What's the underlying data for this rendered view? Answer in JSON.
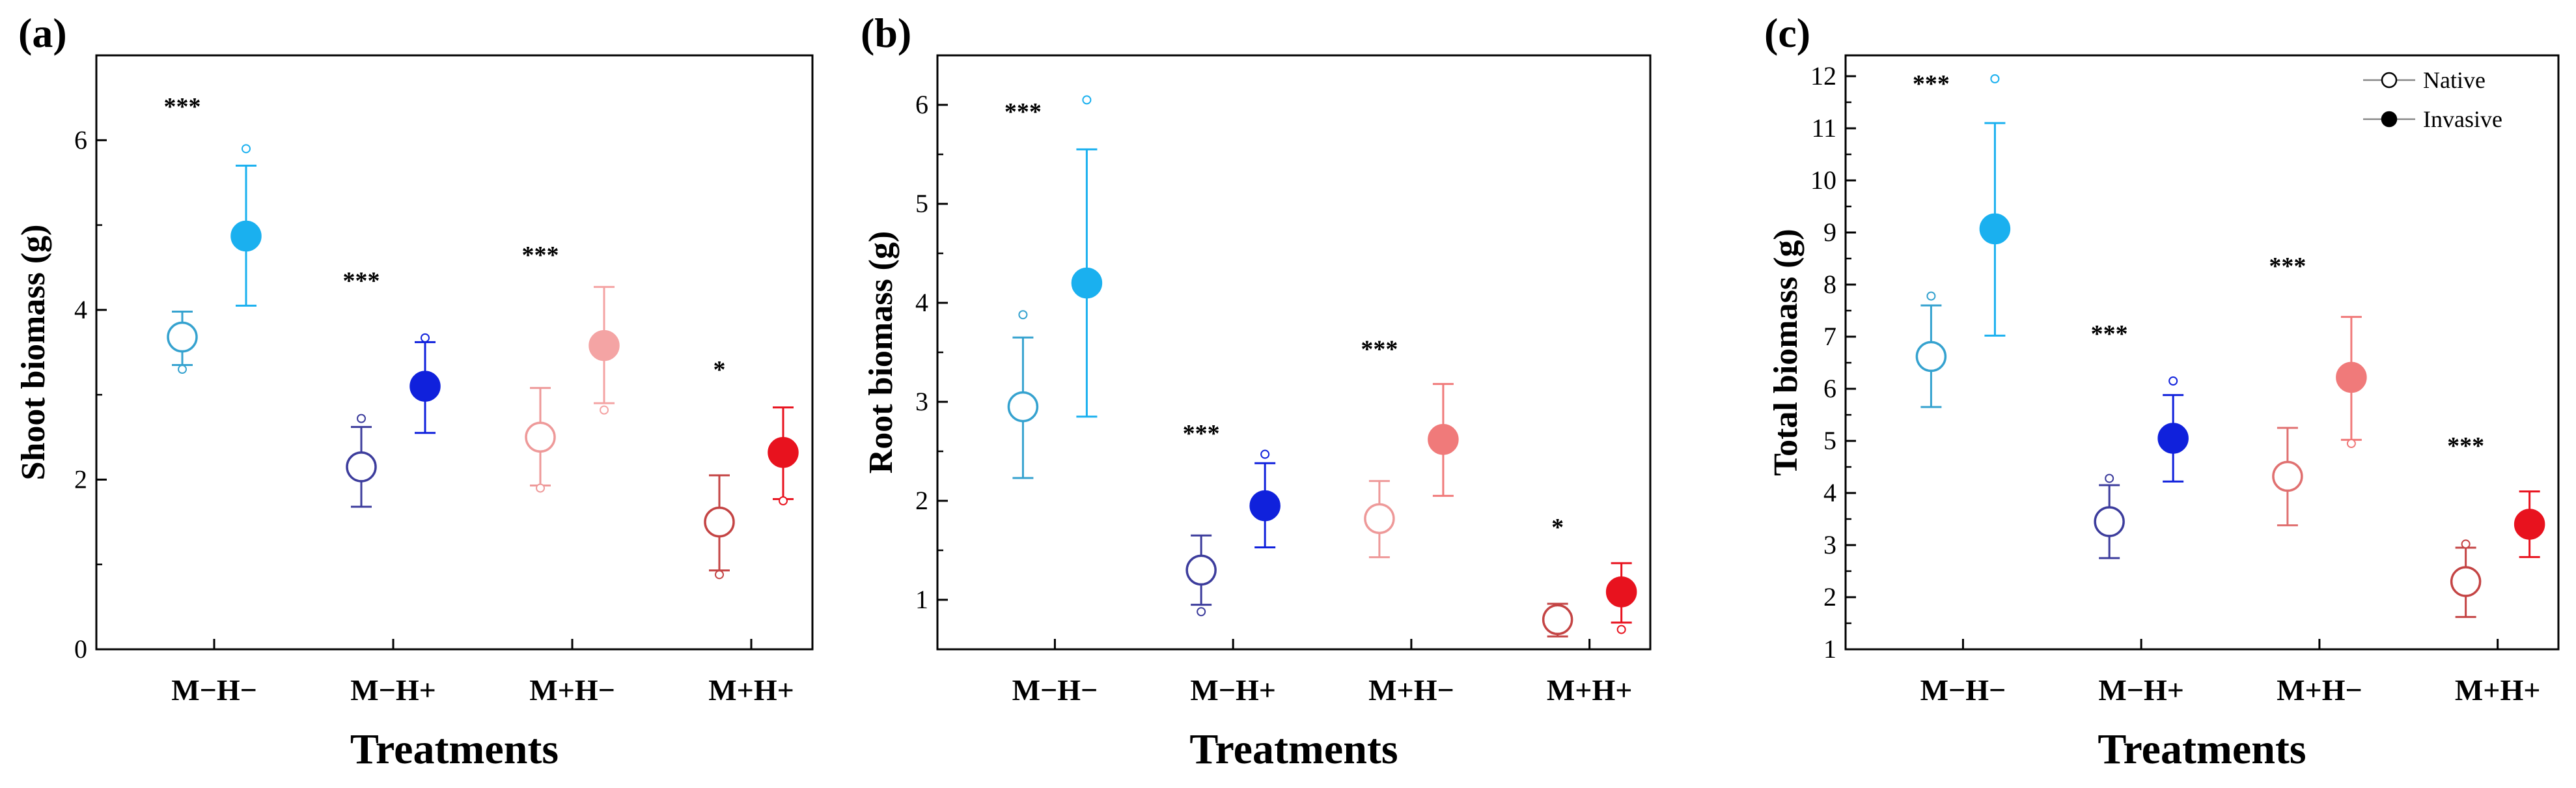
{
  "chart_data": [
    {
      "panel": "(a)",
      "type": "scatter",
      "ylabel": "Shoot biomass (g)",
      "xlabel": "Treatments",
      "ylim": [
        0,
        7
      ],
      "yticks": [
        0,
        2,
        4,
        6
      ],
      "minor_step": 1,
      "categories": [
        "M−H−",
        "M−H+",
        "M+H−",
        "M+H+"
      ],
      "points": [
        {
          "category": 0,
          "group": "Native",
          "mean": 3.68,
          "lower": 3.35,
          "upper": 3.98,
          "outlier_high": null,
          "outlier_low": 3.3,
          "color": "#35a2cf",
          "filled": false
        },
        {
          "category": 0,
          "group": "Invasive",
          "mean": 4.87,
          "lower": 4.05,
          "upper": 5.7,
          "outlier_high": 5.9,
          "outlier_low": null,
          "color": "#1ab0ef",
          "filled": true
        },
        {
          "category": 1,
          "group": "Native",
          "mean": 2.15,
          "lower": 1.68,
          "upper": 2.62,
          "outlier_high": 2.72,
          "outlier_low": null,
          "color": "#3c3c9c",
          "filled": false
        },
        {
          "category": 1,
          "group": "Invasive",
          "mean": 3.1,
          "lower": 2.55,
          "upper": 3.62,
          "outlier_high": 3.67,
          "outlier_low": null,
          "color": "#1021dc",
          "filled": true
        },
        {
          "category": 2,
          "group": "Native",
          "mean": 2.5,
          "lower": 1.93,
          "upper": 3.08,
          "outlier_high": null,
          "outlier_low": 1.9,
          "color": "#ee9999",
          "filled": false
        },
        {
          "category": 2,
          "group": "Invasive",
          "mean": 3.58,
          "lower": 2.9,
          "upper": 4.27,
          "outlier_high": null,
          "outlier_low": 2.82,
          "color": "#f4a4a4",
          "filled": true
        },
        {
          "category": 3,
          "group": "Native",
          "mean": 1.5,
          "lower": 0.93,
          "upper": 2.05,
          "outlier_high": null,
          "outlier_low": 0.88,
          "color": "#c44444",
          "filled": false
        },
        {
          "category": 3,
          "group": "Invasive",
          "mean": 2.32,
          "lower": 1.77,
          "upper": 2.85,
          "outlier_high": null,
          "outlier_low": 1.75,
          "color": "#e8121e",
          "filled": true
        }
      ],
      "significance": [
        {
          "category": 0,
          "label": "***",
          "y": 6.3
        },
        {
          "category": 1,
          "label": "***",
          "y": 4.25
        },
        {
          "category": 2,
          "label": "***",
          "y": 4.55
        },
        {
          "category": 3,
          "label": "*",
          "y": 3.2
        }
      ]
    },
    {
      "panel": "(b)",
      "type": "scatter",
      "ylabel": "Root biomass (g)",
      "xlabel": "Treatments",
      "ylim": [
        0.5,
        6.5
      ],
      "yticks": [
        1,
        2,
        3,
        4,
        5,
        6
      ],
      "minor_step": 0.5,
      "categories": [
        "M−H−",
        "M−H+",
        "M+H−",
        "M+H+"
      ],
      "points": [
        {
          "category": 0,
          "group": "Native",
          "mean": 2.95,
          "lower": 2.23,
          "upper": 3.65,
          "outlier_high": 3.88,
          "outlier_low": null,
          "color": "#35a2cf",
          "filled": false
        },
        {
          "category": 0,
          "group": "Invasive",
          "mean": 4.2,
          "lower": 2.85,
          "upper": 5.55,
          "outlier_high": 6.05,
          "outlier_low": null,
          "color": "#1ab0ef",
          "filled": true
        },
        {
          "category": 1,
          "group": "Native",
          "mean": 1.3,
          "lower": 0.95,
          "upper": 1.65,
          "outlier_high": null,
          "outlier_low": 0.88,
          "color": "#3c3c9c",
          "filled": false
        },
        {
          "category": 1,
          "group": "Invasive",
          "mean": 1.95,
          "lower": 1.53,
          "upper": 2.38,
          "outlier_high": 2.47,
          "outlier_low": null,
          "color": "#1021dc",
          "filled": true
        },
        {
          "category": 2,
          "group": "Native",
          "mean": 1.82,
          "lower": 1.43,
          "upper": 2.2,
          "outlier_high": null,
          "outlier_low": null,
          "color": "#ee9999",
          "filled": false
        },
        {
          "category": 2,
          "group": "Invasive",
          "mean": 2.62,
          "lower": 2.05,
          "upper": 3.18,
          "outlier_high": null,
          "outlier_low": null,
          "color": "#f07a7a",
          "filled": true
        },
        {
          "category": 3,
          "group": "Native",
          "mean": 0.8,
          "lower": 0.63,
          "upper": 0.96,
          "outlier_high": null,
          "outlier_low": null,
          "color": "#c44444",
          "filled": false
        },
        {
          "category": 3,
          "group": "Invasive",
          "mean": 1.08,
          "lower": 0.77,
          "upper": 1.37,
          "outlier_high": null,
          "outlier_low": 0.7,
          "color": "#e8121e",
          "filled": true
        }
      ],
      "significance": [
        {
          "category": 0,
          "label": "***",
          "y": 5.85
        },
        {
          "category": 1,
          "label": "***",
          "y": 2.6
        },
        {
          "category": 2,
          "label": "***",
          "y": 3.45
        },
        {
          "category": 3,
          "label": "*",
          "y": 1.65
        }
      ]
    },
    {
      "panel": "(c)",
      "type": "scatter",
      "ylabel": "Total biomass (g)",
      "xlabel": "Treatments",
      "ylim": [
        1,
        12.4
      ],
      "yticks": [
        1,
        2,
        3,
        4,
        5,
        6,
        7,
        8,
        9,
        10,
        11,
        12
      ],
      "minor_step": 0.5,
      "categories": [
        "M−H−",
        "M−H+",
        "M+H−",
        "M+H+"
      ],
      "points": [
        {
          "category": 0,
          "group": "Native",
          "mean": 6.62,
          "lower": 5.65,
          "upper": 7.6,
          "outlier_high": 7.78,
          "outlier_low": null,
          "color": "#35a2cf",
          "filled": false
        },
        {
          "category": 0,
          "group": "Invasive",
          "mean": 9.07,
          "lower": 7.02,
          "upper": 11.1,
          "outlier_high": 11.95,
          "outlier_low": null,
          "color": "#1ab0ef",
          "filled": true
        },
        {
          "category": 1,
          "group": "Native",
          "mean": 3.45,
          "lower": 2.75,
          "upper": 4.15,
          "outlier_high": 4.28,
          "outlier_low": null,
          "color": "#3c3c9c",
          "filled": false
        },
        {
          "category": 1,
          "group": "Invasive",
          "mean": 5.05,
          "lower": 4.22,
          "upper": 5.88,
          "outlier_high": 6.15,
          "outlier_low": null,
          "color": "#1021dc",
          "filled": true
        },
        {
          "category": 2,
          "group": "Native",
          "mean": 4.32,
          "lower": 3.38,
          "upper": 5.25,
          "outlier_high": null,
          "outlier_low": null,
          "color": "#e07070",
          "filled": false
        },
        {
          "category": 2,
          "group": "Invasive",
          "mean": 6.22,
          "lower": 5.02,
          "upper": 7.38,
          "outlier_high": null,
          "outlier_low": 4.95,
          "color": "#f07a7a",
          "filled": true
        },
        {
          "category": 3,
          "group": "Native",
          "mean": 2.3,
          "lower": 1.62,
          "upper": 2.95,
          "outlier_high": 3.02,
          "outlier_low": null,
          "color": "#c44444",
          "filled": false
        },
        {
          "category": 3,
          "group": "Invasive",
          "mean": 3.4,
          "lower": 2.77,
          "upper": 4.03,
          "outlier_high": null,
          "outlier_low": null,
          "color": "#e8121e",
          "filled": true
        }
      ],
      "significance": [
        {
          "category": 0,
          "label": "***",
          "y": 11.7
        },
        {
          "category": 1,
          "label": "***",
          "y": 6.9
        },
        {
          "category": 2,
          "label": "***",
          "y": 8.2
        },
        {
          "category": 3,
          "label": "***",
          "y": 4.75
        }
      ],
      "legend": {
        "position": "top-right",
        "entries": [
          {
            "label": "Native",
            "filled": false
          },
          {
            "label": "Invasive",
            "filled": true
          }
        ]
      }
    }
  ]
}
